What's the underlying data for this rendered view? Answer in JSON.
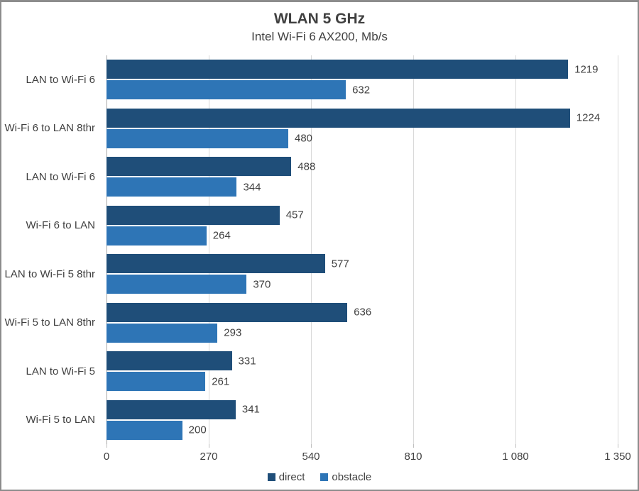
{
  "chart_data": {
    "type": "bar",
    "orientation": "horizontal",
    "title": "WLAN 5 GHz",
    "subtitle": "Intel Wi-Fi 6 AX200, Mb/s",
    "categories": [
      "LAN to Wi-Fi 6",
      "Wi-Fi 6 to LAN 8thr",
      "LAN to Wi-Fi 6",
      "Wi-Fi 6 to LAN",
      "LAN to Wi-Fi 5 8thr",
      "Wi-Fi 5 to LAN 8thr",
      "LAN to Wi-Fi 5",
      "Wi-Fi 5 to LAN"
    ],
    "series": [
      {
        "name": "direct",
        "color": "#1F4E79",
        "values": [
          1219,
          1224,
          488,
          457,
          577,
          636,
          331,
          341
        ]
      },
      {
        "name": "obstacle",
        "color": "#2E75B6",
        "values": [
          632,
          480,
          344,
          264,
          370,
          293,
          261,
          200
        ]
      }
    ],
    "xlim": [
      0,
      1350
    ],
    "x_ticks": [
      0,
      270,
      540,
      810,
      1080,
      1350
    ],
    "x_tick_labels": [
      "0",
      "270",
      "540",
      "810",
      "1 080",
      "1 350"
    ],
    "grid": true,
    "legend_position": "bottom",
    "value_labels": "outside-end"
  },
  "colors": {
    "text": "#404040",
    "gridline": "#D9D9D9",
    "axis_line": "#A6A6A6",
    "frame_border": "#8C8C8C",
    "background": "#FFFFFF"
  }
}
